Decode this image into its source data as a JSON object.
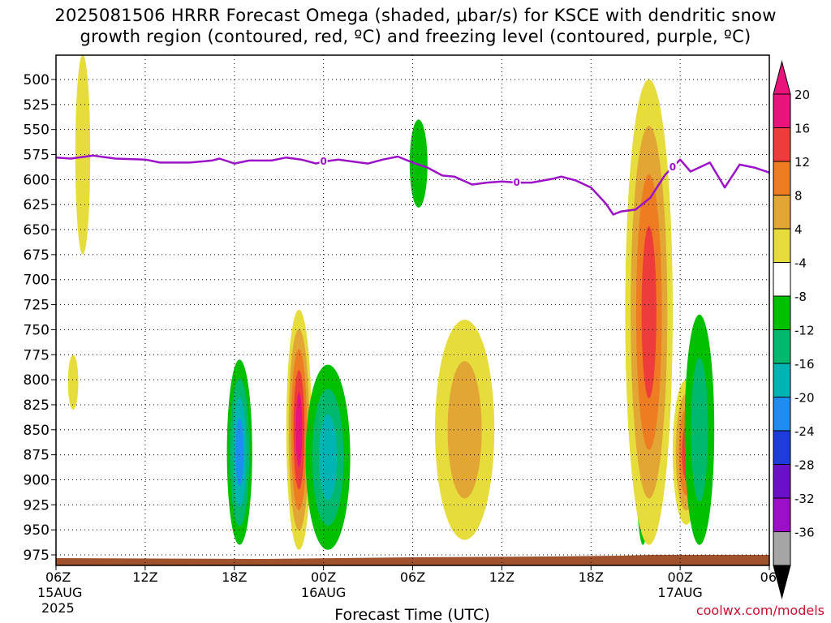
{
  "title_line1": "2025081506 HRRR Forecast Omega (shaded, μbar/s) for KSCE with dendritic snow",
  "title_line2": "growth region (contoured, red, ºC) and freezing level (contoured, purple, ºC)",
  "credit": "coolwx.com/models",
  "chart_data": {
    "type": "heatmap",
    "title": "2025081506 HRRR Forecast Omega (shaded, μbar/s) for KSCE with dendritic snow growth region (contoured, red, ºC) and freezing level (contoured, purple, ºC)",
    "xlabel": "Forecast Time (UTC)",
    "ylabel": "",
    "x_range_hours": [
      0,
      48
    ],
    "y_range_hPa": [
      475,
      985
    ],
    "y_inverted": true,
    "grid": true,
    "x_ticks": [
      {
        "hour": 0,
        "label": "06Z",
        "date": "15AUG",
        "year": "2025"
      },
      {
        "hour": 6,
        "label": "12Z"
      },
      {
        "hour": 12,
        "label": "18Z"
      },
      {
        "hour": 18,
        "label": "00Z",
        "date": "16AUG"
      },
      {
        "hour": 24,
        "label": "06Z"
      },
      {
        "hour": 30,
        "label": "12Z"
      },
      {
        "hour": 36,
        "label": "18Z"
      },
      {
        "hour": 42,
        "label": "00Z",
        "date": "17AUG"
      },
      {
        "hour": 48,
        "label": "06Z"
      }
    ],
    "y_ticks": [
      500,
      525,
      550,
      575,
      600,
      625,
      650,
      675,
      700,
      725,
      750,
      775,
      800,
      825,
      850,
      875,
      900,
      925,
      950,
      975
    ],
    "colorbar": {
      "labels": [
        "20",
        "16",
        "12",
        "8",
        "4",
        "-4",
        "-8",
        "-12",
        "-16",
        "-20",
        "-24",
        "-28",
        "-32",
        "-36"
      ],
      "bins": [
        {
          "lo": 20,
          "hi": 24,
          "color": "#e8147c"
        },
        {
          "lo": 16,
          "hi": 20,
          "color": "#ee3b3b"
        },
        {
          "lo": 12,
          "hi": 16,
          "color": "#ee7d22"
        },
        {
          "lo": 8,
          "hi": 12,
          "color": "#e2a634"
        },
        {
          "lo": 4,
          "hi": 8,
          "color": "#e6dc3c"
        },
        {
          "lo": -4,
          "hi": 4,
          "color": "#ffffff"
        },
        {
          "lo": -8,
          "hi": -4,
          "color": "#00c000"
        },
        {
          "lo": -12,
          "hi": -8,
          "color": "#00b96e"
        },
        {
          "lo": -16,
          "hi": -12,
          "color": "#00b4b4"
        },
        {
          "lo": -20,
          "hi": -16,
          "color": "#1e8cf0"
        },
        {
          "lo": -24,
          "hi": -20,
          "color": "#1e3cdc"
        },
        {
          "lo": -28,
          "hi": -24,
          "color": "#6a10c8"
        },
        {
          "lo": -32,
          "hi": -28,
          "color": "#9b0fc9"
        },
        {
          "lo": -36,
          "hi": -32,
          "color": "#a5a5a5"
        }
      ]
    },
    "freezing_level": {
      "contour_value": "0",
      "color": "#9b12c8",
      "points": [
        [
          0,
          578
        ],
        [
          1,
          579
        ],
        [
          2.5,
          576
        ],
        [
          4,
          579
        ],
        [
          6,
          580
        ],
        [
          7,
          583
        ],
        [
          9,
          583
        ],
        [
          10.5,
          581
        ],
        [
          11,
          579
        ],
        [
          12,
          584
        ],
        [
          13,
          581
        ],
        [
          14.5,
          581
        ],
        [
          15.5,
          578
        ],
        [
          16.5,
          580
        ],
        [
          17.5,
          584
        ],
        [
          18,
          582
        ],
        [
          19,
          580
        ],
        [
          20,
          582
        ],
        [
          21,
          584
        ],
        [
          22,
          580
        ],
        [
          23,
          577
        ],
        [
          24,
          583
        ],
        [
          25,
          588
        ],
        [
          26,
          596
        ],
        [
          26.8,
          597
        ],
        [
          28,
          605
        ],
        [
          29,
          603
        ],
        [
          30,
          602
        ],
        [
          31,
          603
        ],
        [
          32,
          603
        ],
        [
          33.5,
          599
        ],
        [
          34,
          597
        ],
        [
          35,
          601
        ],
        [
          36,
          608
        ],
        [
          37,
          624
        ],
        [
          37.5,
          635
        ],
        [
          38,
          632
        ],
        [
          39,
          630
        ],
        [
          40,
          618
        ],
        [
          41,
          595
        ],
        [
          42,
          580
        ],
        [
          42.7,
          592
        ],
        [
          44,
          583
        ],
        [
          45,
          608
        ],
        [
          46,
          585
        ],
        [
          47,
          588
        ],
        [
          48,
          593
        ]
      ],
      "labels_at_hours": [
        18,
        31,
        41.5
      ]
    },
    "omega_regions": [
      {
        "name": "thin positive band near 09Z 15AUG",
        "hours": [
          1.3,
          2.3
        ],
        "pressure_hPa": [
          475,
          675
        ],
        "peak_value": 6
      },
      {
        "name": "small positive cell",
        "hours": [
          0.8,
          1.5
        ],
        "pressure_hPa": [
          775,
          830
        ],
        "peak_value": 5
      },
      {
        "name": "ascent cell 18Z 15AUG",
        "hours": [
          11.5,
          13.2
        ],
        "pressure_hPa": [
          780,
          965
        ],
        "peak_value": -18
      },
      {
        "name": "descent cell 21Z 15AUG",
        "hours": [
          15.5,
          17.2
        ],
        "pressure_hPa": [
          730,
          970
        ],
        "peak_value": 22
      },
      {
        "name": "ascent cell 00Z 16AUG",
        "hours": [
          16.8,
          19.8
        ],
        "pressure_hPa": [
          785,
          970
        ],
        "peak_value": -15
      },
      {
        "name": "ascent strip 06Z 16AUG",
        "hours": [
          23.8,
          25
        ],
        "pressure_hPa": [
          540,
          628
        ],
        "peak_value": -6
      },
      {
        "name": "descent cell 11Z 16AUG",
        "hours": [
          25.5,
          29.5
        ],
        "pressure_hPa": [
          740,
          960
        ],
        "peak_value": 10
      },
      {
        "name": "strong ascent core 21Z 16AUG",
        "hours": [
          38.9,
          40.1
        ],
        "pressure_hPa": [
          670,
          965
        ],
        "peak_value": -36
      },
      {
        "name": "strong descent core 22Z 16AUG",
        "hours": [
          38.3,
          41.5
        ],
        "pressure_hPa": [
          500,
          965
        ],
        "peak_value": 20
      },
      {
        "name": "descent cell 00Z 17AUG",
        "hours": [
          41.5,
          43.3
        ],
        "pressure_hPa": [
          800,
          945
        ],
        "peak_value": 18
      },
      {
        "name": "ascent cell 01Z 17AUG",
        "hours": [
          42.3,
          44.3
        ],
        "pressure_hPa": [
          735,
          965
        ],
        "peak_value": -13
      }
    ]
  }
}
